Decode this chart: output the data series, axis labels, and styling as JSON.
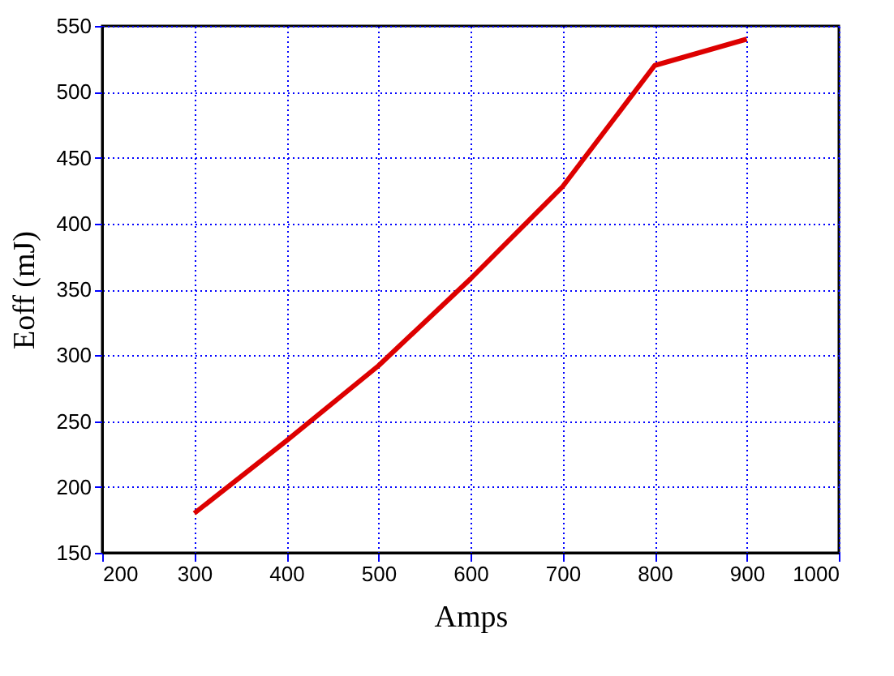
{
  "chart_data": {
    "type": "line",
    "xlabel": "Amps",
    "ylabel": "Eoff (mJ)",
    "x": [
      300,
      400,
      500,
      600,
      700,
      800,
      900
    ],
    "series": [
      {
        "color": "#dd0000",
        "values": [
          180,
          235,
          292,
          358,
          428,
          520,
          540
        ]
      }
    ],
    "xlim": [
      200,
      1000
    ],
    "xticks": [
      200,
      300,
      400,
      500,
      600,
      700,
      800,
      900,
      1000
    ],
    "ylim": [
      150,
      550
    ],
    "yticks": [
      150,
      200,
      250,
      300,
      350,
      400,
      450,
      500,
      550
    ],
    "grid": true,
    "line_style": "solid",
    "marker": "none"
  }
}
